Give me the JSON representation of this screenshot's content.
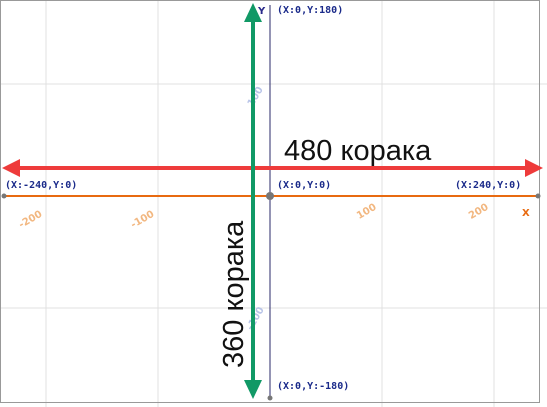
{
  "labels": {
    "top": "(X:0,Y:180)",
    "left": "(X:-240,Y:0)",
    "center": "(X:0,Y:0)",
    "right": "(X:240,Y:0)",
    "bottom": "(X:0,Y:-180)"
  },
  "axis_names": {
    "x": "X",
    "y": "Y"
  },
  "x_ticks": [
    "-200",
    "-100",
    "100",
    "200"
  ],
  "y_ticks": [
    "100",
    "-100"
  ],
  "width_label": "480 корака",
  "height_label": "360 корака"
}
